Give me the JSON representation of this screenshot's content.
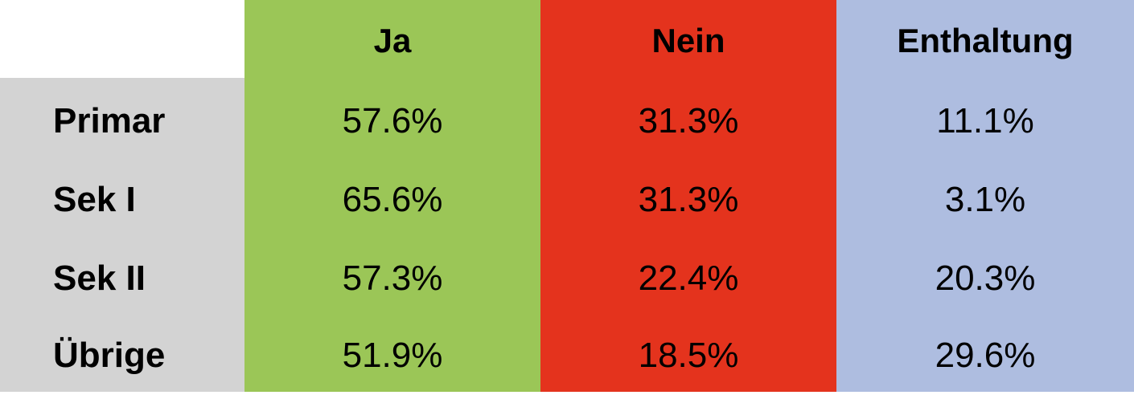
{
  "chart_data": {
    "type": "table",
    "columns": [
      "",
      "Ja",
      "Nein",
      "Enthaltung"
    ],
    "rows": [
      {
        "label": "Primar",
        "values": [
          "57.6%",
          "31.3%",
          "11.1%"
        ]
      },
      {
        "label": "Sek I",
        "values": [
          "65.6%",
          "31.3%",
          "3.1%"
        ]
      },
      {
        "label": "Sek II",
        "values": [
          "57.3%",
          "22.4%",
          "20.3%"
        ]
      },
      {
        "label": "Übrige",
        "values": [
          "51.9%",
          "18.5%",
          "29.6%"
        ]
      }
    ],
    "colors": {
      "row_label_background": "#d3d3d3",
      "Ja": "#9bc657",
      "Nein": "#e4331d",
      "Enthaltung": "#aebde0"
    }
  }
}
